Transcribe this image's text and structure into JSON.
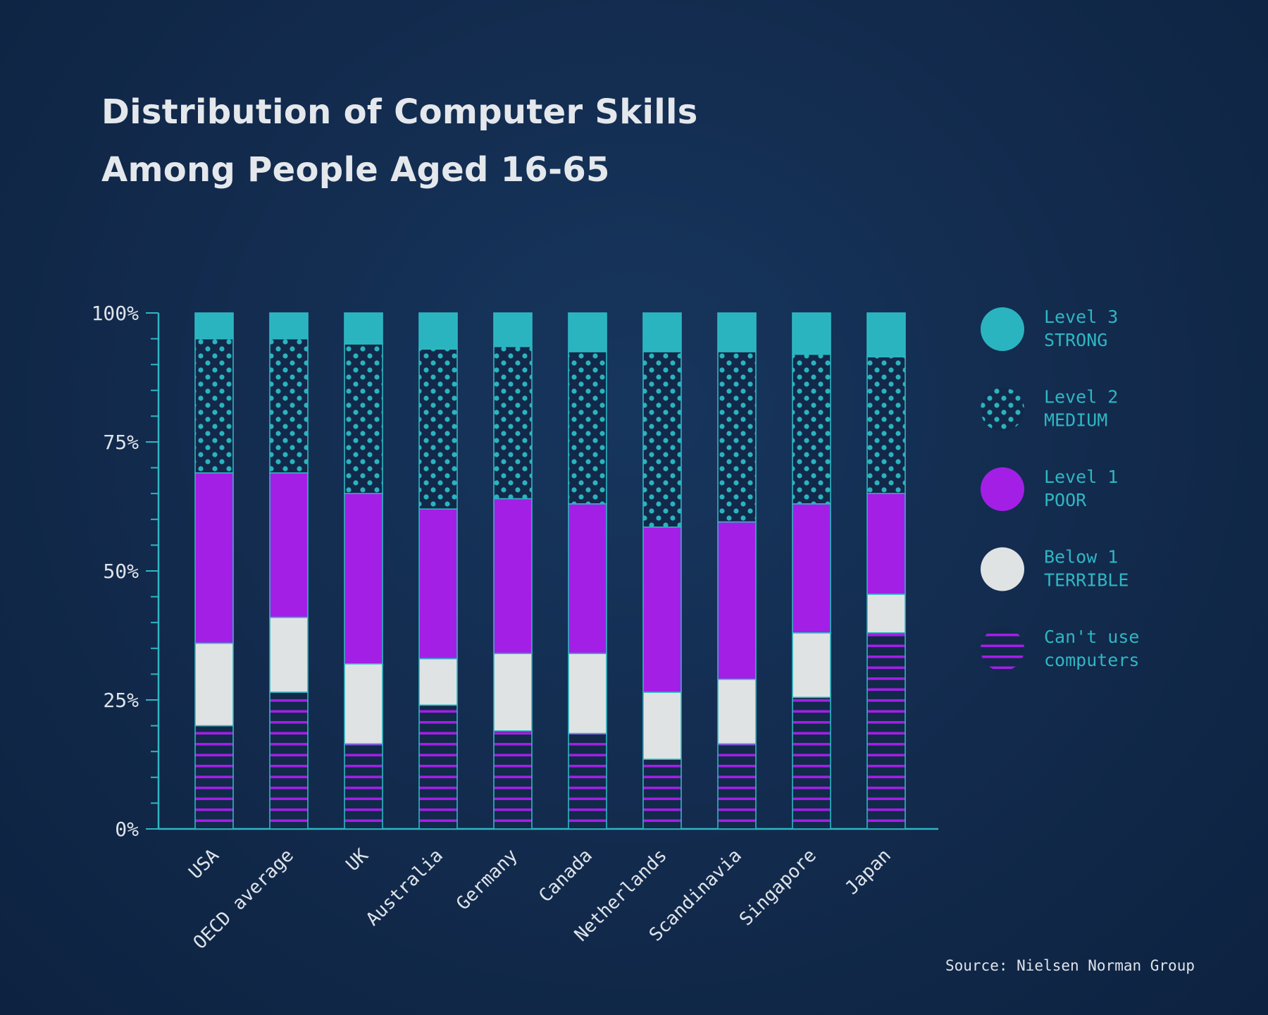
{
  "title_lines": [
    "Distribution of Computer Skills",
    "Among People Aged 16-65"
  ],
  "source": "Source: Nielsen Norman Group",
  "colors": {
    "background": "#12294a",
    "axis": "#2fb6c2",
    "level3": "#2ab4c0",
    "level2_dot": "#2ab4c0",
    "level1": "#a31fe6",
    "below1": "#dfe3e4",
    "cant_use": "#a31fe6",
    "tick_label": "#dfe4ea",
    "legend_text": "#2fb6c2"
  },
  "chart_data": {
    "type": "bar",
    "stacked": true,
    "categories": [
      "USA",
      "OECD average",
      "UK",
      "Australia",
      "Germany",
      "Canada",
      "Netherlands",
      "Scandinavia",
      "Singapore",
      "Japan"
    ],
    "series": [
      {
        "name": "Can't use computers",
        "pattern": "stripes",
        "values": [
          20,
          26.5,
          16.5,
          24,
          19,
          18.5,
          13.5,
          16.5,
          25.5,
          38
        ]
      },
      {
        "name": "Below 1 TERRIBLE",
        "pattern": "solid",
        "values": [
          16,
          14.5,
          15.5,
          9,
          15,
          15.5,
          13,
          12.5,
          12.5,
          7.5
        ]
      },
      {
        "name": "Level 1 POOR",
        "pattern": "solid",
        "values": [
          33,
          28,
          33,
          29,
          30,
          29,
          32,
          30.5,
          25,
          19.5
        ]
      },
      {
        "name": "Level 2 MEDIUM",
        "pattern": "dots",
        "values": [
          26,
          26,
          29,
          31,
          29.5,
          29.5,
          34,
          33,
          29,
          26.5
        ]
      },
      {
        "name": "Level 3 STRONG",
        "pattern": "solid",
        "values": [
          5,
          5,
          6,
          7,
          6.5,
          7.5,
          7.5,
          7.5,
          8,
          8.5
        ]
      }
    ],
    "ylim": [
      0,
      100
    ],
    "yticks": [
      "0%",
      "25%",
      "50%",
      "75%",
      "100%"
    ],
    "xlabel": "",
    "ylabel": "",
    "grid": false,
    "legend_position": "right",
    "legend": [
      {
        "line1": "Level 3",
        "line2": "STRONG",
        "key": "level3"
      },
      {
        "line1": "Level 2",
        "line2": "MEDIUM",
        "key": "level2"
      },
      {
        "line1": "Level 1",
        "line2": "POOR",
        "key": "level1"
      },
      {
        "line1": "Below 1",
        "line2": "TERRIBLE",
        "key": "below1"
      },
      {
        "line1": "Can't use",
        "line2": "computers",
        "key": "cant_use"
      }
    ]
  }
}
